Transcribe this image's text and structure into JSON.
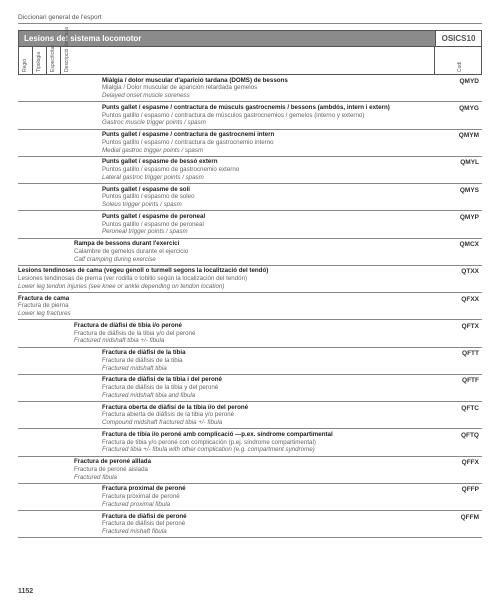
{
  "docHeader": "Diccionari general de l'esport",
  "titleBar": {
    "title": "Lesions del sistema locomotor",
    "codeSystem": "OSICS10"
  },
  "columnHeaders": {
    "regio": "Regió",
    "tipologia": "Tipologia",
    "especificitat": "Especificitat",
    "descripcio": "Descripció detallada",
    "codi": "Codi"
  },
  "entries": [
    {
      "indent": 84,
      "code": "QMYD",
      "ca": "Miàlgia / dolor muscular d'aparició tardana (DOMS) de bessons",
      "es": "Mialgia / Dolor muscular de aparición retardada gemelos",
      "en": "Delayed onset muscle soreness"
    },
    {
      "indent": 84,
      "code": "QMYG",
      "ca": "Punts gallet / espasme / contractura de músculs gastrocnemis / bessons (ambdós, intern i extern)",
      "es": "Puntos gatillo / espasmo / contractura de músculos gastrocnemios / gemelos (interno y externo)",
      "en": "Gastroc muscle trigger points / spasm"
    },
    {
      "indent": 84,
      "code": "QMYM",
      "ca": "Punts gallet / espasme / contractura de gastrocnemi intern",
      "es": "Puntos gatillo / espasmo / contractura de gastrocnemio interno",
      "en": "Medial gastroc trigger points / spasm"
    },
    {
      "indent": 84,
      "code": "QMYL",
      "ca": "Punts gallet / espasme de bessó extern",
      "es": "Puntos gatillo / espasmo de gastrocnemio externo",
      "en": "Lateral gastroc trigger points / spasm"
    },
    {
      "indent": 84,
      "code": "QMYS",
      "ca": "Punts gallet / espasme de soli",
      "es": "Puntos gatillo / espasmo de soleo",
      "en": "Soleus trigger points / spasm"
    },
    {
      "indent": 84,
      "code": "QMYP",
      "ca": "Punts gallet / espasme de peroneal",
      "es": "Puntos gatillo / espasmo de peroneal",
      "en": "Peroneal trigger points / spasm"
    },
    {
      "indent": 56,
      "code": "QMCX",
      "ca": "Rampa de bessons durant l'exercici",
      "es": "Calambre de gemelos durante el ejercicio",
      "en": "Calf cramping during exercise"
    },
    {
      "indent": 0,
      "code": "QTXX",
      "ca": "Lesions tendinoses de cama (vegeu genoll o turmell segons la localització del tendó)",
      "es": "Lesiones tendinosas de pierna (ver rodilla o tobillo según la localización del tendón)",
      "en": "Lower leg tendon injuries (see knee or ankle depending on tendon location)"
    },
    {
      "indent": 0,
      "code": "QFXX",
      "ca": "Fractura de cama",
      "es": "Fractura de pierna",
      "en": "Lower leg fractures"
    },
    {
      "indent": 56,
      "code": "QFTX",
      "ca": "Fractura de diàfisi de tíbia i/o peroné",
      "es": "Fractura de diáfisis de la tibia y/o del peroné",
      "en": "Fractured midshaft tibia +/- fibula"
    },
    {
      "indent": 84,
      "code": "QFTT",
      "ca": "Fractura de diàfisi de la tíbia",
      "es": "Fractura de diáfisis de la tibia",
      "en": "Fractured midshaft tibia"
    },
    {
      "indent": 84,
      "code": "QFTF",
      "ca": "Fractura de diàfisi de la tíbia i del peroné",
      "es": "Fractura de diáfisis de la tibia y del peroné",
      "en": "Fractured midshaft tibia and fibula"
    },
    {
      "indent": 84,
      "code": "QFTC",
      "ca": "Fractura oberta de diàfisi de la tíbia i/o del peroné",
      "es": "Fractura abierta de diáfisis de la tibia y/o peroné",
      "en": "Compound midshaft fractured tibia +/- fibula"
    },
    {
      "indent": 84,
      "code": "QFTQ",
      "ca": "Fractura de tíbia i/o peroné amb complicació —p.ex. síndrome compartimental",
      "es": "Fractura de tibia y/o peroné con complicación (p.ej. síndrome compartimental)",
      "en": "Fractured tibia +/- fibula with other complication (e.g. compartment syndrome)"
    },
    {
      "indent": 56,
      "code": "QFFX",
      "ca": "Fractura de peroné aïllada",
      "es": "Fractura de peroné aislada",
      "en": "Fractured fibula"
    },
    {
      "indent": 84,
      "code": "QFFP",
      "ca": "Fractura proximal de peroné",
      "es": "Fractura proximal de peroné",
      "en": "Fractured proximal fibula"
    },
    {
      "indent": 84,
      "code": "QFFM",
      "ca": "Fractura de diàfisi de peroné",
      "es": "Fractura de diáfisis del peroné",
      "en": "Fractured mishaft fibula"
    }
  ],
  "pageNumber": "1152",
  "colors": {
    "titleBg": "#8b8b8b",
    "border": "#555555",
    "rule": "#888888",
    "textMain": "#222222",
    "textSub": "#666666"
  }
}
